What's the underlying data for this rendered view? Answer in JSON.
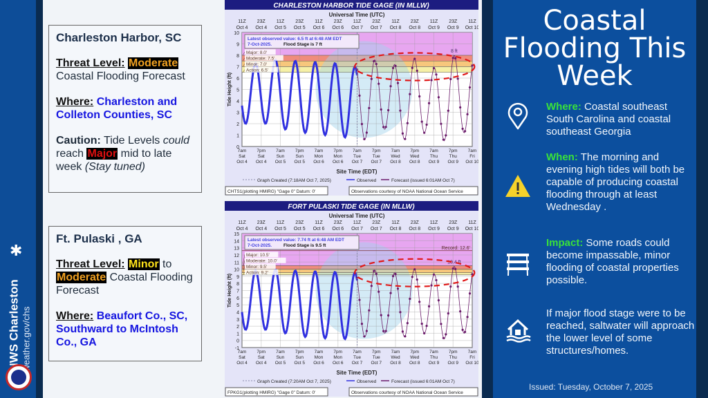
{
  "branding": {
    "office": "NWS Charleston",
    "url": "weather.gov/chs"
  },
  "cards": [
    {
      "location": "Charleston Harbor, SC",
      "threat_label": "Threat Level:",
      "threat_value": "Moderate",
      "threat_rest": "Coastal Flooding Forecast",
      "where_label": "Where:",
      "where_value": "Charleston and Colleton Counties, SC",
      "caution_label": "Caution:",
      "caution_1": "Tide Levels",
      "caution_could": "could",
      "caution_2": "reach",
      "caution_major": "Major",
      "caution_3": "mid to late week",
      "caution_tuned": "(Stay tuned)"
    },
    {
      "location": "Ft. Pulaski , GA",
      "threat_label": "Threat Level:",
      "threat_value": "Minor",
      "threat_mid": "to",
      "threat_value2": "Moderate",
      "threat_rest": "Coastal Flooding Forecast",
      "where_label": "Where:",
      "where_value": "Beaufort Co., SC, Southward to McIntosh Co., GA"
    }
  ],
  "right": {
    "title": "Coastal Flooding This Week",
    "items": [
      {
        "icon": "map-pin-icon",
        "label": "Where:",
        "text": "Coastal southeast South Carolina and coastal southeast Georgia"
      },
      {
        "icon": "warning-icon",
        "label": "When:",
        "text": "The morning and evening high tides will both be capable of producing coastal flooding through at least Wednesday ."
      },
      {
        "icon": "road-barrier-icon",
        "label": "Impact:",
        "text": "Some roads could become impassable, minor flooding of coastal properties possible."
      },
      {
        "icon": "flooded-house-icon",
        "label": "",
        "text": "If major flood stage were to be reached,  saltwater will approach the lower level of some structures/homes."
      }
    ],
    "issued": "Issued: Tuesday, October 7, 2025"
  },
  "colors": {
    "observed": "#3030e0",
    "forecast": "#6a1a6a",
    "major": "#e7a6f0",
    "moderate": "#f08c7c",
    "minor": "#f7c77c",
    "action": "#f6f0a6",
    "annotation": "#e01818",
    "title_bar": "#1c1c80"
  },
  "chart_data": [
    {
      "type": "line",
      "title": "CHARLESTON HARBOR TIDE GAGE (IN MLLW)",
      "top_axis_label": "Universal Time (UTC)",
      "xlabel": "Site Time (EDT)",
      "ylabel": "Tide Height (ft)",
      "ylim": [
        0,
        10
      ],
      "yticks": [
        0,
        1,
        2,
        3,
        4,
        5,
        6,
        7,
        8,
        9,
        10
      ],
      "utc_ticks": [
        [
          "11Z",
          "Oct 4"
        ],
        [
          "23Z",
          "Oct 4"
        ],
        [
          "11Z",
          "Oct 5"
        ],
        [
          "23Z",
          "Oct 5"
        ],
        [
          "11Z",
          "Oct 6"
        ],
        [
          "23Z",
          "Oct 6"
        ],
        [
          "11Z",
          "Oct 7"
        ],
        [
          "23Z",
          "Oct 7"
        ],
        [
          "11Z",
          "Oct 8"
        ],
        [
          "23Z",
          "Oct 8"
        ],
        [
          "11Z",
          "Oct 9"
        ],
        [
          "23Z",
          "Oct 9"
        ],
        [
          "11Z",
          "Oct 10"
        ]
      ],
      "local_ticks": [
        [
          "7am",
          "Sat",
          "Oct 4"
        ],
        [
          "7pm",
          "Sat",
          "Oct 4"
        ],
        [
          "7am",
          "Sun",
          "Oct 5"
        ],
        [
          "7pm",
          "Sun",
          "Oct 5"
        ],
        [
          "7am",
          "Mon",
          "Oct 6"
        ],
        [
          "7pm",
          "Mon",
          "Oct 6"
        ],
        [
          "7am",
          "Tue",
          "Oct 7"
        ],
        [
          "7pm",
          "Tue",
          "Oct 7"
        ],
        [
          "7am",
          "Wed",
          "Oct 8"
        ],
        [
          "7pm",
          "Wed",
          "Oct 8"
        ],
        [
          "7am",
          "Thu",
          "Oct 9"
        ],
        [
          "7pm",
          "Thu",
          "Oct 9"
        ],
        [
          "7am",
          "Fri",
          "Oct 10"
        ]
      ],
      "thresholds": [
        {
          "name": "Action",
          "value": 6.5,
          "label": "Action: 6.5'"
        },
        {
          "name": "Minor",
          "value": 7.0,
          "label": "Minor: 7.0'"
        },
        {
          "name": "Moderate",
          "value": 7.5,
          "label": "Moderate: 7.5'"
        },
        {
          "name": "Major",
          "value": 8.0,
          "label": "Major: 8.0'"
        }
      ],
      "latest": [
        "Latest observed value: 6.5 ft at 6:48 AM EDT",
        "7-Oct-2025.",
        "Flood Stage is 7 ft"
      ],
      "peak_label": "8 ft",
      "series": [
        {
          "name": "Observed",
          "highs": [
            7.3,
            7.6,
            7.5,
            7.4,
            7.3,
            7.0
          ],
          "lows": [
            2.0,
            1.5,
            1.2,
            1.0,
            0.8,
            0.6
          ]
        },
        {
          "name": "Forecast (issued 6:01AM Oct 7)",
          "highs": [
            7.6,
            7.2,
            7.7,
            6.9,
            8.0,
            7.6
          ],
          "lows": [
            1.5,
            0.6,
            1.2,
            0.5,
            1.2,
            1.8
          ]
        }
      ],
      "legend": {
        "created": "Graph Created (7:18AM Oct 7, 2025)",
        "observed": "Observed",
        "forecast": "Forecast (issued 6:01AM Oct 7)"
      },
      "footer_left": "CHTS1(plotting HMIRG) \"Gage 0\" Datum: 0'",
      "footer_right": "Observations courtesy of NOAA National Ocean Service"
    },
    {
      "type": "line",
      "title": "FORT PULASKI TIDE GAGE (IN MLLW)",
      "top_axis_label": "Universal Time (UTC)",
      "xlabel": "Site Time (EDT)",
      "ylabel": "Tide Height (ft)",
      "ylim": [
        -1,
        15
      ],
      "yticks": [
        -1,
        0,
        1,
        2,
        3,
        4,
        5,
        6,
        7,
        8,
        9,
        10,
        11,
        12,
        13,
        14,
        15
      ],
      "utc_ticks": [
        [
          "11Z",
          "Oct 4"
        ],
        [
          "23Z",
          "Oct 4"
        ],
        [
          "11Z",
          "Oct 5"
        ],
        [
          "23Z",
          "Oct 5"
        ],
        [
          "11Z",
          "Oct 6"
        ],
        [
          "23Z",
          "Oct 6"
        ],
        [
          "11Z",
          "Oct 7"
        ],
        [
          "23Z",
          "Oct 7"
        ],
        [
          "11Z",
          "Oct 8"
        ],
        [
          "23Z",
          "Oct 8"
        ],
        [
          "11Z",
          "Oct 9"
        ],
        [
          "23Z",
          "Oct 9"
        ],
        [
          "11Z",
          "Oct 10"
        ]
      ],
      "local_ticks": [
        [
          "7am",
          "Sat",
          "Oct 4"
        ],
        [
          "7pm",
          "Sat",
          "Oct 4"
        ],
        [
          "7am",
          "Sun",
          "Oct 5"
        ],
        [
          "7pm",
          "Sun",
          "Oct 5"
        ],
        [
          "7am",
          "Mon",
          "Oct 6"
        ],
        [
          "7pm",
          "Mon",
          "Oct 6"
        ],
        [
          "7am",
          "Tue",
          "Oct 7"
        ],
        [
          "7pm",
          "Tue",
          "Oct 7"
        ],
        [
          "7am",
          "Wed",
          "Oct 8"
        ],
        [
          "7pm",
          "Wed",
          "Oct 8"
        ],
        [
          "7am",
          "Thu",
          "Oct 9"
        ],
        [
          "7pm",
          "Thu",
          "Oct 9"
        ],
        [
          "7am",
          "Fri",
          "Oct 10"
        ]
      ],
      "thresholds": [
        {
          "name": "Action",
          "value": 9.2,
          "label": "Action: 9.2'"
        },
        {
          "name": "Minor",
          "value": 9.5,
          "label": "Minor: 9.5'"
        },
        {
          "name": "Moderate",
          "value": 10.0,
          "label": "Moderate: 10.0'"
        },
        {
          "name": "Major",
          "value": 10.5,
          "label": "Major: 10.5'"
        }
      ],
      "record": {
        "value": 12.6,
        "label": "Record: 12.6'"
      },
      "latest": [
        "Latest observed value: 7.74 ft at 6:48 AM EDT",
        "7-Oct-2025.",
        "Flood Stage is 9.5 ft"
      ],
      "peak_label": "10.4 ft",
      "series": [
        {
          "name": "Observed",
          "highs": [
            9.8,
            9.9,
            9.8,
            9.7,
            9.6,
            9.5
          ],
          "lows": [
            1.5,
            1.0,
            0.5,
            0.3,
            0.2,
            0.5
          ]
        },
        {
          "name": "Forecast (issued 6:01AM Oct 7)",
          "highs": [
            9.9,
            9.5,
            10.0,
            9.3,
            10.4,
            10.0
          ],
          "lows": [
            1.0,
            0.5,
            1.0,
            0.2,
            1.0,
            2.0
          ]
        }
      ],
      "legend": {
        "created": "Graph Created (7:20AM Oct 7, 2025)",
        "observed": "Observed",
        "forecast": "Forecast (issued 6:01AM Oct 7)"
      },
      "footer_left": "FPKG1(plotting HMIRG) \"Gage 0\" Datum: 0'",
      "footer_right": "Observations courtesy of NOAA National Ocean Service"
    }
  ]
}
